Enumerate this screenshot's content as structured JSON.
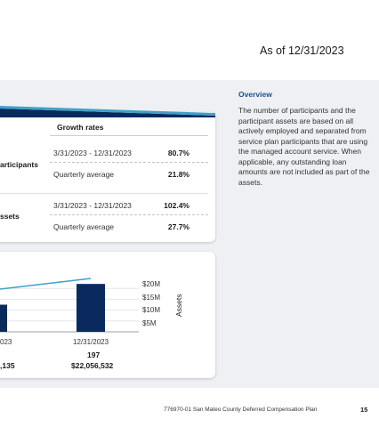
{
  "header": {
    "as_of": "As of 12/31/2023"
  },
  "growth": {
    "title": "Growth rates",
    "participants": {
      "label": "articipants",
      "period_label": "3/31/2023 - 12/31/2023",
      "period_value": "80.7%",
      "avg_label": "Quarterly average",
      "avg_value": "21.8%"
    },
    "assets": {
      "label": "ssets",
      "period_label": "3/31/2023 - 12/31/2023",
      "period_value": "102.4%",
      "avg_label": "Quarterly average",
      "avg_value": "27.7%"
    }
  },
  "chart_data": {
    "type": "bar",
    "categories": [
      "023",
      "12/31/2023"
    ],
    "participants": [
      "",
      "197"
    ],
    "asset_labels": [
      ",135",
      "$22,056,532"
    ],
    "values": [
      12.5,
      22.06
    ],
    "ylabel": "Assets",
    "y_ticks": [
      "$20M",
      "$15M",
      "$10M",
      "$5M"
    ],
    "ylim": [
      0,
      25
    ],
    "colors": {
      "bar": "#0a2a5e",
      "line": "#3fa0c8"
    }
  },
  "overview": {
    "title": "Overview",
    "text": "The number of participants and the participant assets are based on all actively employed and separated from service plan participants that are using the managed account service. When applicable, any outstanding loan amounts are not included as part of the assets."
  },
  "footer": {
    "text": "776970-01 San Mateo County Deferred Compensation Plan",
    "page": "15"
  }
}
